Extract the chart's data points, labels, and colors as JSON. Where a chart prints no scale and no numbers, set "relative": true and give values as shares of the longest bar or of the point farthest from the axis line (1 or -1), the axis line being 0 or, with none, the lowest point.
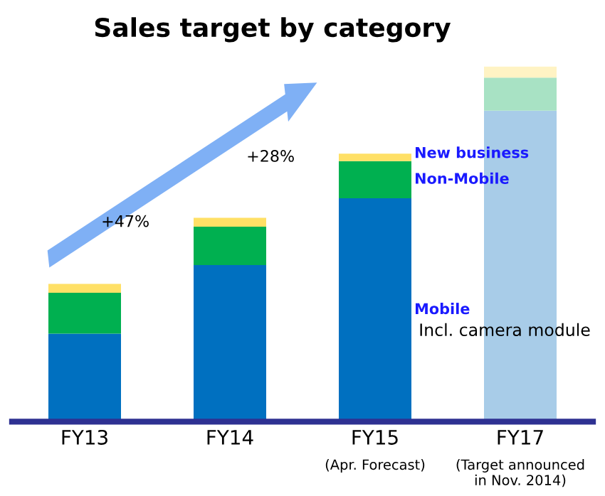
{
  "chart_data": {
    "type": "bar",
    "title": "Sales target by category",
    "stacked": true,
    "relative": true,
    "categories": [
      "FY13",
      "FY14",
      "FY15\n(Apr. Forecast)",
      "FY17\n(Target announced\nin Nov. 2014)"
    ],
    "series": [
      {
        "name": "Mobile",
        "colors": [
          "#0070c0",
          "#0070c0",
          "#0070c0",
          "#a8cce8"
        ],
        "values": [
          0.248,
          0.441,
          0.629,
          0.876
        ]
      },
      {
        "name": "Non-Mobile",
        "colors": [
          "#00b050",
          "#00b050",
          "#00b050",
          "#a8e2c4"
        ],
        "values": [
          0.115,
          0.108,
          0.105,
          0.093
        ]
      },
      {
        "name": "New business",
        "colors": [
          "#ffe066",
          "#ffe066",
          "#ffe066",
          "#fff3c4"
        ],
        "values": [
          0.025,
          0.025,
          0.021,
          0.031
        ]
      }
    ],
    "annotations": [
      "+47%",
      "+28%",
      "Incl. camera module"
    ]
  }
}
